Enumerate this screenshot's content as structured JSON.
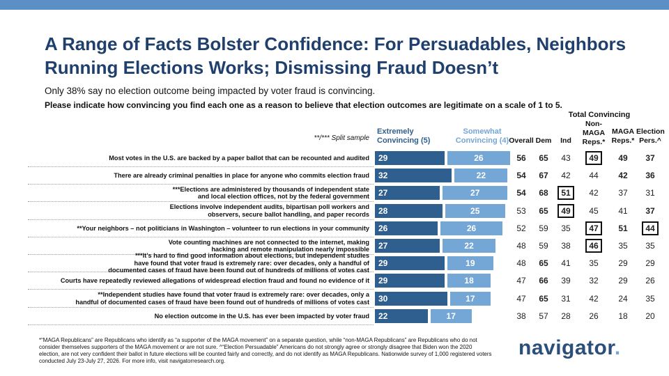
{
  "title": "A Range of Facts Bolster Confidence: For Persuadables, Neighbors Running Elections Works; Dismissing Fraud Doesn’t",
  "subtitle": "Only 38% say no election outcome being impacted by voter fraud is convincing.",
  "question": "Please indicate how convincing you find each one as a reason to believe that election outcomes are legitimate on a scale of 1 to 5.",
  "split_note": "**/*** Split sample",
  "total_convincing_label": "Total Convincing",
  "footnote": "*“MAGA Republicans” are Republicans who identify as “a supporter of the MAGA movement” on a separate question, while “non-MAGA Republicans” are Republicans who do not consider themselves supporters of the MAGA movement or are not sure. ^“Election Persuadable” Americans do not strongly agree or strongly disagree that Biden won the 2020 election, are not very confident their ballot in future elections will be counted fairly and correctly, and do not identify as MAGA Republicans. Nationwide survey of 1,000 registered voters conducted July 23-July 27, 2026. For more info, visit navigatorresearch.org.",
  "logo": {
    "text": "navigator",
    "dot": "."
  },
  "colors": {
    "extremely": "#2f5f8e",
    "somewhat": "#74a6d6",
    "title": "#1f3f6c",
    "topbar": "#5b8fc6"
  },
  "chart_data": {
    "type": "bar",
    "orientation": "horizontal-stacked",
    "series": [
      {
        "name": "Extremely Convincing (5)",
        "values": [
          29,
          32,
          27,
          28,
          26,
          27,
          29,
          29,
          30,
          22
        ]
      },
      {
        "name": "Somewhat Convincing (4)",
        "values": [
          26,
          22,
          27,
          25,
          26,
          22,
          19,
          18,
          17,
          17
        ]
      }
    ],
    "columns": [
      "Overall",
      "Dem",
      "Ind",
      "Non-MAGA Reps.*",
      "MAGA Reps.*",
      "Election Pers.^"
    ],
    "rows": [
      {
        "label": "Most votes in the U.S. are backed by a paper ballot that can be recounted and audited",
        "values": [
          56,
          65,
          43,
          49,
          49,
          37
        ],
        "bold": [
          1,
          1,
          0,
          1,
          1,
          1
        ],
        "boxed": [
          0,
          0,
          0,
          1,
          0,
          0
        ]
      },
      {
        "label": "There are already criminal penalties in place for anyone who commits election fraud",
        "values": [
          54,
          67,
          42,
          44,
          42,
          36
        ],
        "bold": [
          1,
          1,
          0,
          0,
          1,
          1
        ],
        "boxed": [
          0,
          0,
          0,
          0,
          0,
          0
        ]
      },
      {
        "label": "***Elections are administered by thousands of independent state\nand local election offices, not by the federal government",
        "values": [
          54,
          68,
          51,
          42,
          37,
          31
        ],
        "bold": [
          1,
          1,
          1,
          0,
          0,
          0
        ],
        "boxed": [
          0,
          0,
          1,
          0,
          0,
          0
        ]
      },
      {
        "label": "Elections involve independent audits, bipartisan poll workers and\nobservers, secure ballot handling, and paper records",
        "values": [
          53,
          65,
          49,
          45,
          41,
          37
        ],
        "bold": [
          0,
          1,
          1,
          0,
          0,
          1
        ],
        "boxed": [
          0,
          0,
          1,
          0,
          0,
          0
        ]
      },
      {
        "label": "**Your neighbors – not politicians in Washington – volunteer to run elections in your community",
        "values": [
          52,
          59,
          35,
          47,
          51,
          44
        ],
        "bold": [
          0,
          0,
          0,
          1,
          1,
          1
        ],
        "boxed": [
          0,
          0,
          0,
          1,
          0,
          1
        ]
      },
      {
        "label": "Vote counting machines are not connected to the internet, making\nhacking and remote manipulation nearly impossible",
        "values": [
          48,
          59,
          38,
          46,
          35,
          35
        ],
        "bold": [
          0,
          0,
          0,
          1,
          0,
          0
        ],
        "boxed": [
          0,
          0,
          0,
          1,
          0,
          0
        ]
      },
      {
        "label": "***It’s hard to find good information about elections, but independent studies\nhave found that voter fraud is extremely rare: over decades, only a handful of\ndocumented cases of fraud have been found out of hundreds of millions of votes cast",
        "values": [
          48,
          65,
          41,
          35,
          29,
          29
        ],
        "bold": [
          0,
          1,
          0,
          0,
          0,
          0
        ],
        "boxed": [
          0,
          0,
          0,
          0,
          0,
          0
        ]
      },
      {
        "label": "Courts have repeatedly reviewed allegations of widespread election fraud and found no evidence of it",
        "values": [
          47,
          66,
          39,
          32,
          29,
          26
        ],
        "bold": [
          0,
          1,
          0,
          0,
          0,
          0
        ],
        "boxed": [
          0,
          0,
          0,
          0,
          0,
          0
        ]
      },
      {
        "label": "**Independent studies have found that voter fraud is extremely rare: over decades, only a\nhandful of documented cases of fraud have been found out of hundreds of millions of votes cast",
        "values": [
          47,
          65,
          31,
          42,
          24,
          35
        ],
        "bold": [
          0,
          1,
          0,
          0,
          0,
          0
        ],
        "boxed": [
          0,
          0,
          0,
          0,
          0,
          0
        ]
      },
      {
        "label": "No election outcome in the U.S. has ever been impacted by voter fraud",
        "values": [
          38,
          57,
          28,
          26,
          18,
          20
        ],
        "bold": [
          0,
          0,
          0,
          0,
          0,
          0
        ],
        "boxed": [
          0,
          0,
          0,
          0,
          0,
          0
        ]
      }
    ]
  }
}
